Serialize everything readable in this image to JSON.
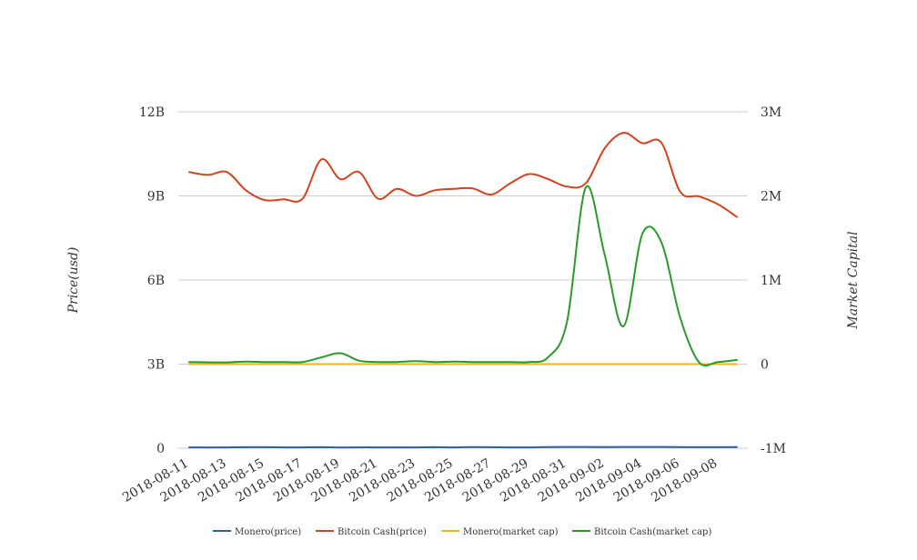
{
  "chart_data": {
    "type": "line",
    "title": "",
    "ylabel": "Price(usd)",
    "y2label": "Market Capital",
    "x": [
      "2018-08-11",
      "2018-08-12",
      "2018-08-13",
      "2018-08-14",
      "2018-08-15",
      "2018-08-16",
      "2018-08-17",
      "2018-08-18",
      "2018-08-19",
      "2018-08-20",
      "2018-08-21",
      "2018-08-22",
      "2018-08-23",
      "2018-08-24",
      "2018-08-25",
      "2018-08-26",
      "2018-08-27",
      "2018-08-28",
      "2018-08-29",
      "2018-08-30",
      "2018-08-31",
      "2018-09-01",
      "2018-09-02",
      "2018-09-03",
      "2018-09-04",
      "2018-09-05",
      "2018-09-06",
      "2018-09-07",
      "2018-09-08",
      "2018-09-09"
    ],
    "x_tick_labels": [
      "2018-08-11",
      "2018-08-13",
      "2018-08-15",
      "2018-08-17",
      "2018-08-19",
      "2018-08-21",
      "2018-08-23",
      "2018-08-25",
      "2018-08-27",
      "2018-08-29",
      "2018-08-31",
      "2018-09-02",
      "2018-09-04",
      "2018-09-06",
      "2018-09-08"
    ],
    "y_left": {
      "ticks": [
        0,
        3000000000,
        6000000000,
        9000000000,
        12000000000
      ],
      "tick_labels": [
        "0",
        "3B",
        "6B",
        "9B",
        "12B"
      ],
      "range": [
        0,
        12000000000
      ]
    },
    "y_right": {
      "ticks": [
        -1000000,
        0,
        1000000,
        2000000,
        3000000
      ],
      "tick_labels": [
        "-1M",
        "0",
        "1M",
        "2M",
        "3M"
      ],
      "range": [
        -1000000,
        3000000
      ]
    },
    "series": [
      {
        "name": "Monero(price)",
        "axis": "left",
        "color": "#2e5fa8",
        "values": [
          30000000,
          25000000,
          30000000,
          35000000,
          35000000,
          30000000,
          30000000,
          35000000,
          25000000,
          30000000,
          30000000,
          30000000,
          30000000,
          35000000,
          30000000,
          40000000,
          35000000,
          30000000,
          30000000,
          40000000,
          45000000,
          45000000,
          40000000,
          45000000,
          45000000,
          45000000,
          40000000,
          35000000,
          35000000,
          40000000
        ]
      },
      {
        "name": "Bitcoin Cash(price)",
        "axis": "left",
        "color": "#d2441e",
        "values": [
          9850000000,
          9750000000,
          9850000000,
          9200000000,
          8850000000,
          8880000000,
          8900000000,
          10300000000,
          9600000000,
          9850000000,
          8900000000,
          9250000000,
          9000000000,
          9200000000,
          9250000000,
          9270000000,
          9050000000,
          9450000000,
          9780000000,
          9600000000,
          9330000000,
          9450000000,
          10700000000,
          11250000000,
          10880000000,
          10900000000,
          9150000000,
          8980000000,
          8700000000,
          8250000000
        ]
      },
      {
        "name": "Monero(market cap)",
        "axis": "right",
        "color": "#f0b429",
        "values": [
          0,
          0,
          0,
          0,
          0,
          0,
          0,
          0,
          0,
          0,
          0,
          0,
          0,
          0,
          0,
          0,
          0,
          0,
          0,
          0,
          0,
          0,
          0,
          0,
          0,
          0,
          0,
          0,
          0,
          0
        ]
      },
      {
        "name": "Bitcoin Cash(market cap)",
        "axis": "right",
        "color": "#2a9a2a",
        "values": [
          25000,
          22000,
          20000,
          30000,
          25000,
          25000,
          25000,
          80000,
          130000,
          40000,
          25000,
          25000,
          35000,
          25000,
          30000,
          25000,
          25000,
          25000,
          25000,
          80000,
          500000,
          2100000,
          1300000,
          450000,
          1550000,
          1450000,
          550000,
          20000,
          25000,
          50000
        ]
      }
    ],
    "legend": {
      "placement": "bottom",
      "entries": [
        "Monero(price)",
        "Bitcoin Cash(price)",
        "Monero(market cap)",
        "Bitcoin Cash(market cap)"
      ]
    },
    "grid": true
  }
}
